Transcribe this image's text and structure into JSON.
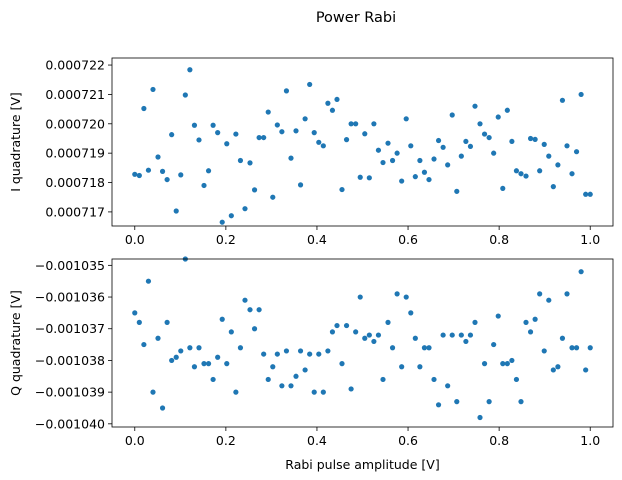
{
  "figure": {
    "title": "Power Rabi",
    "point_color": "#1f77b4"
  },
  "chart_data": [
    {
      "type": "scatter",
      "xlabel": "",
      "ylabel": "I quadrature [V]",
      "xlim": [
        -0.05,
        1.05
      ],
      "ylim": [
        0.00071652,
        0.00072224
      ],
      "xticks": [
        0.0,
        0.2,
        0.4,
        0.6,
        0.8,
        1.0
      ],
      "xtick_labels": [
        "0.0",
        "0.2",
        "0.4",
        "0.6",
        "0.8",
        "1.0"
      ],
      "yticks": [
        0.000717,
        0.000718,
        0.000719,
        0.00072,
        0.000721,
        0.000722
      ],
      "ytick_labels": [
        "0.000717",
        "0.000718",
        "0.000719",
        "0.000720",
        "0.000721",
        "0.000722"
      ],
      "grid": false,
      "series": [
        {
          "color": "#1f77b4",
          "x": [
            0.0,
            0.01,
            0.02,
            0.03,
            0.04,
            0.051,
            0.061,
            0.071,
            0.081,
            0.091,
            0.101,
            0.111,
            0.121,
            0.131,
            0.141,
            0.152,
            0.162,
            0.172,
            0.182,
            0.192,
            0.202,
            0.212,
            0.222,
            0.232,
            0.242,
            0.253,
            0.263,
            0.273,
            0.283,
            0.293,
            0.303,
            0.313,
            0.323,
            0.333,
            0.343,
            0.354,
            0.364,
            0.374,
            0.384,
            0.394,
            0.404,
            0.414,
            0.424,
            0.434,
            0.444,
            0.455,
            0.465,
            0.475,
            0.485,
            0.495,
            0.505,
            0.515,
            0.525,
            0.535,
            0.545,
            0.556,
            0.566,
            0.576,
            0.586,
            0.596,
            0.606,
            0.616,
            0.626,
            0.636,
            0.646,
            0.657,
            0.667,
            0.677,
            0.687,
            0.697,
            0.707,
            0.717,
            0.727,
            0.737,
            0.747,
            0.758,
            0.768,
            0.778,
            0.788,
            0.798,
            0.808,
            0.818,
            0.828,
            0.838,
            0.848,
            0.859,
            0.869,
            0.879,
            0.889,
            0.899,
            0.909,
            0.919,
            0.929,
            0.939,
            0.949,
            0.96,
            0.97,
            0.98,
            0.99,
            1.0
          ],
          "y": [
            0.00071828,
            0.00071824,
            0.00072052,
            0.00071842,
            0.00072117,
            0.00071887,
            0.00071838,
            0.0007181,
            0.00071963,
            0.00071703,
            0.00071826,
            0.00072098,
            0.00072184,
            0.00071995,
            0.00071945,
            0.0007179,
            0.0007184,
            0.00071995,
            0.0007197,
            0.00071665,
            0.00071932,
            0.00071687,
            0.00071965,
            0.00071875,
            0.00071711,
            0.00071867,
            0.00071775,
            0.00071953,
            0.00071953,
            0.0007204,
            0.0007175,
            0.00071996,
            0.00071973,
            0.00072112,
            0.00071883,
            0.00071976,
            0.00071792,
            0.00072017,
            0.00072134,
            0.0007197,
            0.00071937,
            0.00071925,
            0.0007207,
            0.00072046,
            0.00072083,
            0.00071776,
            0.00071946,
            0.00072,
            0.00072,
            0.00071818,
            0.00071966,
            0.00071816,
            0.00072,
            0.0007191,
            0.00071868,
            0.00071934,
            0.00071875,
            0.000719,
            0.00071805,
            0.00072017,
            0.00071925,
            0.0007182,
            0.00071875,
            0.00071835,
            0.0007181,
            0.0007188,
            0.00071943,
            0.0007192,
            0.0007186,
            0.0007203,
            0.0007177,
            0.0007189,
            0.0007194,
            0.00071923,
            0.0007206,
            0.00072,
            0.00071965,
            0.00071953,
            0.000719,
            0.00072023,
            0.0007178,
            0.00072046,
            0.0007194,
            0.0007184,
            0.0007183,
            0.00071822,
            0.0007195,
            0.00071947,
            0.0007184,
            0.0007193,
            0.0007189,
            0.00071786,
            0.0007186,
            0.0007208,
            0.00071925,
            0.0007183,
            0.00071905,
            0.000721,
            0.0007176,
            0.0007176
          ]
        }
      ]
    },
    {
      "type": "scatter",
      "xlabel": "Rabi pulse amplitude [V]",
      "ylabel": "Q quadrature [V]",
      "xlim": [
        -0.05,
        1.05
      ],
      "ylim": [
        -0.0010401,
        -0.0010348
      ],
      "xticks": [
        0.0,
        0.2,
        0.4,
        0.6,
        0.8,
        1.0
      ],
      "xtick_labels": [
        "0.0",
        "0.2",
        "0.4",
        "0.6",
        "0.8",
        "1.0"
      ],
      "yticks": [
        -0.00104,
        -0.001039,
        -0.001038,
        -0.001037,
        -0.001036,
        -0.001035
      ],
      "ytick_labels": [
        "−0.001040",
        "−0.001039",
        "−0.001038",
        "−0.001037",
        "−0.001036",
        "−0.001035"
      ],
      "grid": false,
      "series": [
        {
          "color": "#1f77b4",
          "x": [
            0.0,
            0.01,
            0.02,
            0.03,
            0.04,
            0.051,
            0.061,
            0.071,
            0.081,
            0.091,
            0.101,
            0.111,
            0.121,
            0.131,
            0.141,
            0.152,
            0.162,
            0.172,
            0.182,
            0.192,
            0.202,
            0.212,
            0.222,
            0.232,
            0.242,
            0.253,
            0.263,
            0.273,
            0.283,
            0.293,
            0.303,
            0.313,
            0.323,
            0.333,
            0.343,
            0.354,
            0.364,
            0.374,
            0.384,
            0.394,
            0.404,
            0.414,
            0.424,
            0.434,
            0.444,
            0.455,
            0.465,
            0.475,
            0.485,
            0.495,
            0.505,
            0.515,
            0.525,
            0.535,
            0.545,
            0.556,
            0.566,
            0.576,
            0.586,
            0.596,
            0.606,
            0.616,
            0.626,
            0.636,
            0.646,
            0.657,
            0.667,
            0.677,
            0.687,
            0.697,
            0.707,
            0.717,
            0.727,
            0.737,
            0.747,
            0.758,
            0.768,
            0.778,
            0.788,
            0.798,
            0.808,
            0.818,
            0.828,
            0.838,
            0.848,
            0.859,
            0.869,
            0.879,
            0.889,
            0.899,
            0.909,
            0.919,
            0.929,
            0.939,
            0.949,
            0.96,
            0.97,
            0.98,
            0.99,
            1.0
          ],
          "y": [
            -0.0010365,
            -0.0010368,
            -0.0010375,
            -0.0010355,
            -0.001039,
            -0.0010373,
            -0.0010395,
            -0.0010368,
            -0.001038,
            -0.0010379,
            -0.0010377,
            -0.0010348,
            -0.0010376,
            -0.0010382,
            -0.0010376,
            -0.0010381,
            -0.0010381,
            -0.0010386,
            -0.0010379,
            -0.0010367,
            -0.0010381,
            -0.0010371,
            -0.001039,
            -0.0010376,
            -0.0010361,
            -0.0010364,
            -0.001037,
            -0.0010364,
            -0.0010378,
            -0.0010386,
            -0.0010382,
            -0.0010378,
            -0.0010388,
            -0.0010377,
            -0.0010388,
            -0.0010385,
            -0.0010377,
            -0.0010383,
            -0.0010378,
            -0.001039,
            -0.0010378,
            -0.001039,
            -0.0010377,
            -0.0010371,
            -0.0010369,
            -0.0010381,
            -0.0010369,
            -0.0010389,
            -0.0010371,
            -0.001036,
            -0.0010373,
            -0.0010372,
            -0.0010374,
            -0.0010372,
            -0.0010386,
            -0.0010368,
            -0.0010376,
            -0.0010359,
            -0.0010382,
            -0.001036,
            -0.0010365,
            -0.0010373,
            -0.0010382,
            -0.0010376,
            -0.0010376,
            -0.0010386,
            -0.0010394,
            -0.0010372,
            -0.0010388,
            -0.0010372,
            -0.0010393,
            -0.0010372,
            -0.0010374,
            -0.0010372,
            -0.0010368,
            -0.0010398,
            -0.0010381,
            -0.0010393,
            -0.0010375,
            -0.0010366,
            -0.0010381,
            -0.0010381,
            -0.001038,
            -0.0010386,
            -0.0010393,
            -0.0010368,
            -0.0010371,
            -0.0010367,
            -0.0010359,
            -0.0010377,
            -0.0010361,
            -0.0010383,
            -0.0010382,
            -0.0010373,
            -0.0010359,
            -0.0010376,
            -0.0010376,
            -0.0010352,
            -0.0010383,
            -0.0010376
          ]
        }
      ]
    }
  ]
}
